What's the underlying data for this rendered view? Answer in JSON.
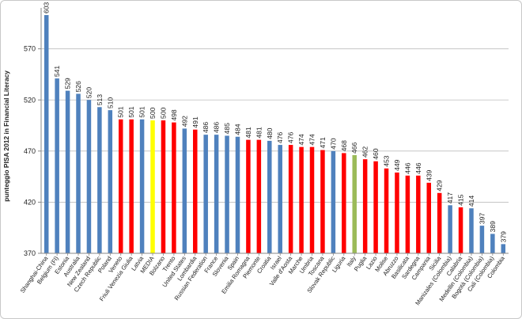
{
  "chart_data": {
    "type": "bar",
    "title": "",
    "xlabel": "",
    "ylabel": "punteggio PISA 2012 in Financial Literacy",
    "ylim": [
      370,
      610
    ],
    "yticks": [
      370,
      420,
      470,
      520,
      570
    ],
    "grid": true,
    "legend": "none",
    "categories": [
      "Shanghai-China",
      "Belgium (Fl)",
      "Estonia",
      "Australia",
      "New Zealand",
      "Czech Republic",
      "Poland",
      "Veneto",
      "Friuli Venezia Giulia",
      "Latvia",
      "MEDIA",
      "Bolzano",
      "Trento",
      "United States",
      "Lombardia",
      "Russian Federation",
      "France",
      "Slovenia",
      "Spain",
      "Emilia Romagna",
      "Piemonte",
      "Croatia",
      "Israel",
      "Valle d'Aosta",
      "Marche",
      "Umbria",
      "Toscana",
      "Slovak Republic",
      "Liguria",
      "Italy",
      "Puglia",
      "Lazio",
      "Molise",
      "Abruzzo",
      "Basilicata",
      "Sardegna",
      "Campania",
      "Sicilia",
      "Manizales (Colombia)",
      "Calabria",
      "Medellin (Colombia)",
      "Bogotà (Colombia)",
      "Cali (Colombia)",
      "Colombia"
    ],
    "values": [
      603,
      541,
      529,
      526,
      520,
      513,
      510,
      501,
      501,
      501,
      500,
      500,
      498,
      492,
      491,
      486,
      486,
      485,
      484,
      481,
      481,
      480,
      476,
      476,
      474,
      474,
      471,
      470,
      468,
      466,
      462,
      460,
      453,
      449,
      446,
      446,
      439,
      429,
      417,
      415,
      414,
      397,
      389,
      379
    ],
    "value_labels": [
      "603",
      "541",
      "529",
      "526",
      "520",
      "513",
      "510",
      "501",
      "501",
      "501",
      "500",
      "500",
      "498",
      "492",
      "491",
      "486",
      "486",
      "485",
      "484",
      "481",
      "481",
      "480",
      "476",
      "476",
      "474",
      "474",
      "471",
      "470",
      "468",
      "466",
      "462",
      "460",
      "453",
      "449",
      "446",
      "446",
      "439",
      "429",
      "417",
      "415",
      "414",
      "397",
      "389",
      "379"
    ],
    "bar_color_keys": [
      "b",
      "b",
      "b",
      "b",
      "b",
      "b",
      "b",
      "r",
      "r",
      "b",
      "y",
      "r",
      "r",
      "b",
      "r",
      "b",
      "b",
      "b",
      "b",
      "r",
      "r",
      "b",
      "b",
      "r",
      "r",
      "r",
      "r",
      "b",
      "r",
      "g",
      "r",
      "r",
      "r",
      "r",
      "r",
      "r",
      "r",
      "r",
      "b",
      "r",
      "b",
      "b",
      "b",
      "b"
    ],
    "colors": {
      "b": "#4f81bd",
      "r": "#ff0000",
      "y": "#ffff00",
      "g": "#9bbb59"
    }
  }
}
